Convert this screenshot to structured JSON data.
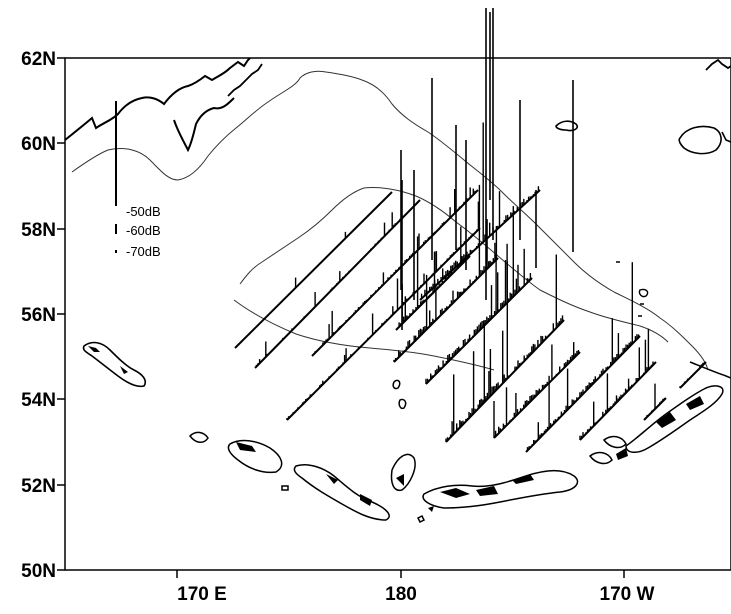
{
  "map": {
    "lat_ticks": [
      "62N",
      "60N",
      "58N",
      "56N",
      "54N",
      "52N",
      "50N"
    ],
    "lon_ticks": [
      "170 E",
      "180",
      "170 W"
    ],
    "lat_range": [
      50,
      62
    ],
    "lon_range_east_deg": [
      165,
      195
    ],
    "legend": [
      {
        "label": "-50dB"
      },
      {
        "label": "-60dB"
      },
      {
        "label": "-70dB"
      }
    ]
  }
}
